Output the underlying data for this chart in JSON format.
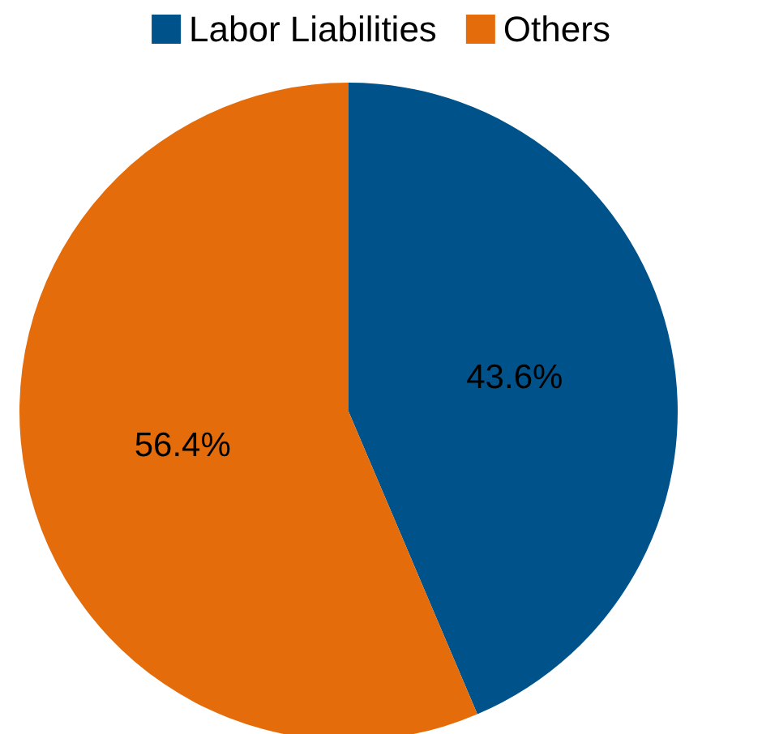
{
  "chart_data": {
    "type": "pie",
    "categories": [
      "Labor Liabilities",
      "Others"
    ],
    "values": [
      43.6,
      56.4
    ],
    "colors": [
      "#00538a",
      "#e46c0a"
    ],
    "value_labels": [
      "43.6%",
      "56.4%"
    ],
    "legend": "top"
  }
}
